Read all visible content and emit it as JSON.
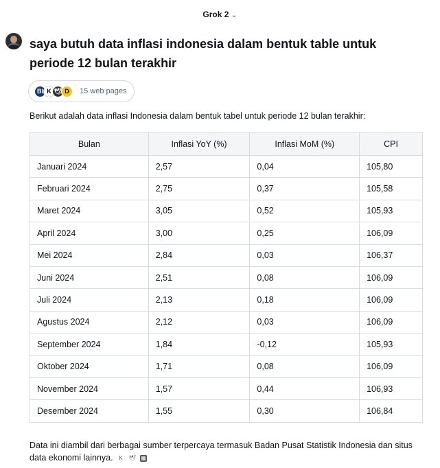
{
  "header": {
    "model_label": "Grok 2",
    "chevron_icon": "chevron-down-icon"
  },
  "user": {
    "avatar_icon": "user-avatar",
    "question": "saya butuh data inflasi indonesia dalam bentuk table untuk periode 12 bulan terakhir"
  },
  "sources": {
    "label": "15 web pages",
    "favicons": [
      "BI",
      "K",
      "🕊",
      "D"
    ]
  },
  "response": {
    "intro": "Berikut adalah data inflasi Indonesia dalam bentuk tabel untuk periode 12 bulan terakhir:",
    "table": {
      "headers": [
        "Bulan",
        "Inflasi YoY (%)",
        "Inflasi MoM (%)",
        "CPI"
      ],
      "rows": [
        [
          "Januari 2024",
          "2,57",
          "0,04",
          "105,80"
        ],
        [
          "Februari 2024",
          "2,75",
          "0,37",
          "105,58"
        ],
        [
          "Maret 2024",
          "3,05",
          "0,52",
          "105,93"
        ],
        [
          "April 2024",
          "3,00",
          "0,25",
          "106,09"
        ],
        [
          "Mei 2024",
          "2,84",
          "0,03",
          "106,37"
        ],
        [
          "Juni 2024",
          "2,51",
          "0,08",
          "106,09"
        ],
        [
          "Juli 2024",
          "2,13",
          "0,18",
          "106,09"
        ],
        [
          "Agustus 2024",
          "2,12",
          "0,03",
          "106,09"
        ],
        [
          "September 2024",
          "1,84",
          "-0,12",
          "105,93"
        ],
        [
          "Oktober 2024",
          "1,71",
          "0,08",
          "106,09"
        ],
        [
          "November 2024",
          "1,57",
          "0,44",
          "106,93"
        ],
        [
          "Desember 2024",
          "1,55",
          "0,30",
          "106,84"
        ]
      ]
    },
    "footer": "Data ini diambil dari berbagai sumber terpercaya termasuk Badan Pusat Statistik Indonesia dan situs data ekonomi lainnya.",
    "footer_icons": [
      "K",
      "🕊",
      "▦"
    ]
  }
}
